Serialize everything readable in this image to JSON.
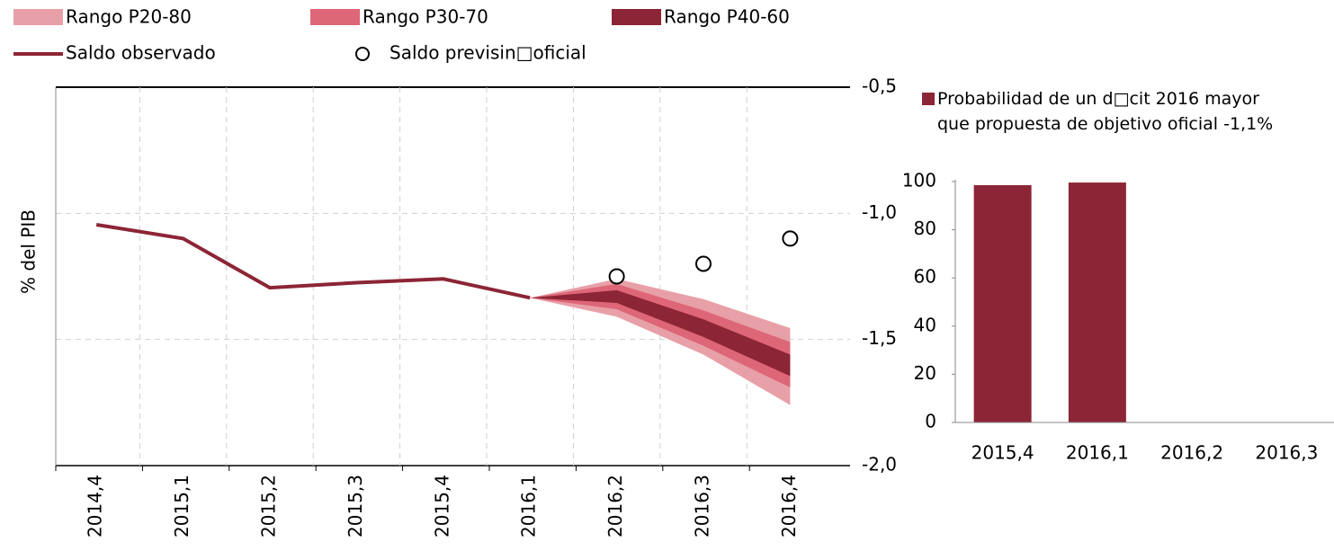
{
  "chart_data": [
    {
      "type": "fan",
      "ylabel": "% del PIB",
      "categories": [
        "2014,4",
        "2015,1",
        "2015,2",
        "2015,3",
        "2015,4",
        "2016,1",
        "2016,2",
        "2016,3",
        "2016,4"
      ],
      "ylim": [
        -2.0,
        -0.5
      ],
      "yticks": [
        {
          "value": -0.5,
          "label": "-0,5"
        },
        {
          "value": -1.0,
          "label": "-1,0"
        },
        {
          "value": -1.5,
          "label": "-1,5"
        },
        {
          "value": -2.0,
          "label": "-2,0"
        }
      ],
      "grid": true,
      "bands": [
        {
          "name": "Rango P20-80",
          "color": "#e8a0a8",
          "low": [
            null,
            null,
            null,
            null,
            null,
            -1.335,
            -1.41,
            -1.56,
            -1.76
          ],
          "high": [
            null,
            null,
            null,
            null,
            null,
            -1.335,
            -1.26,
            -1.34,
            -1.455
          ]
        },
        {
          "name": "Rango P30-70",
          "color": "#dd6677",
          "low": [
            null,
            null,
            null,
            null,
            null,
            -1.335,
            -1.38,
            -1.525,
            -1.69
          ],
          "high": [
            null,
            null,
            null,
            null,
            null,
            -1.335,
            -1.28,
            -1.385,
            -1.51
          ]
        },
        {
          "name": "Rango P40-60",
          "color": "#8c2535",
          "low": [
            null,
            null,
            null,
            null,
            null,
            -1.335,
            -1.355,
            -1.49,
            -1.645
          ],
          "high": [
            null,
            null,
            null,
            null,
            null,
            -1.335,
            -1.305,
            -1.42,
            -1.56
          ]
        }
      ],
      "series": [
        {
          "name": "Saldo observado",
          "type": "line",
          "color": "#8c2535",
          "values": [
            -1.045,
            -1.1,
            -1.295,
            -1.275,
            -1.26,
            -1.335,
            null,
            null,
            null
          ]
        },
        {
          "name": "Saldo previsin□oficial",
          "type": "scatter",
          "color": "#000000",
          "values": [
            null,
            null,
            null,
            null,
            null,
            null,
            -1.25,
            -1.2,
            -1.1
          ]
        }
      ]
    },
    {
      "type": "bar",
      "categories": [
        "2015,4",
        "2016,1",
        "2016,2",
        "2016,3"
      ],
      "ylim": [
        0,
        100
      ],
      "yticks": [
        0,
        20,
        40,
        60,
        80,
        100
      ],
      "series": [
        {
          "name": "Probabilidad de un d□cit 2016 mayor\nque propuesta de objetivo oficial -1,1%",
          "color": "#8c2535",
          "values": [
            98.5,
            99.6,
            0,
            0
          ]
        }
      ]
    }
  ]
}
